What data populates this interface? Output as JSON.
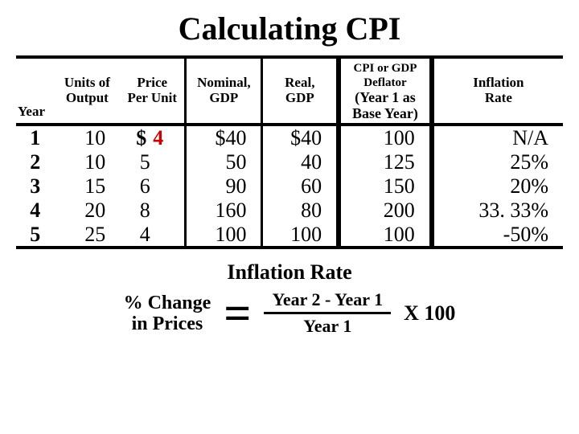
{
  "title": "Calculating CPI",
  "headers": {
    "year": "Year",
    "units": "Units of\nOutput",
    "price": "Price\nPer Unit",
    "ngdp": "Nominal,\nGDP",
    "rgdp": "Real,\nGDP",
    "deflator_top": "CPI or GDP\nDeflator",
    "deflator_bottom": "(Year 1 as\nBase Year)",
    "inflation": "Inflation\nRate"
  },
  "dollar_sign": "$",
  "rows": [
    {
      "year": "1",
      "units": "10",
      "price": "4",
      "ngdp": "$40",
      "rgdp": "$40",
      "deflator": "100",
      "inflation": "N/A"
    },
    {
      "year": "2",
      "units": "10",
      "price": "5",
      "ngdp": "50",
      "rgdp": "40",
      "deflator": "125",
      "inflation": "25%"
    },
    {
      "year": "3",
      "units": "15",
      "price": "6",
      "ngdp": "90",
      "rgdp": "60",
      "deflator": "150",
      "inflation": "20%"
    },
    {
      "year": "4",
      "units": "20",
      "price": "8",
      "ngdp": "160",
      "rgdp": "80",
      "deflator": "200",
      "inflation": "33. 33%"
    },
    {
      "year": "5",
      "units": "25",
      "price": "4",
      "ngdp": "100",
      "rgdp": "100",
      "deflator": "100",
      "inflation": "-50%"
    }
  ],
  "section_title": "Inflation Rate",
  "formula": {
    "lhs_line1": "% Change",
    "lhs_line2": "in Prices",
    "eq": "=",
    "numerator": "Year 2 - Year 1",
    "denominator": "Year 1",
    "multiplier": "X 100"
  },
  "colors": {
    "text": "#000000",
    "accent": "#cc0000",
    "background": "#ffffff"
  }
}
